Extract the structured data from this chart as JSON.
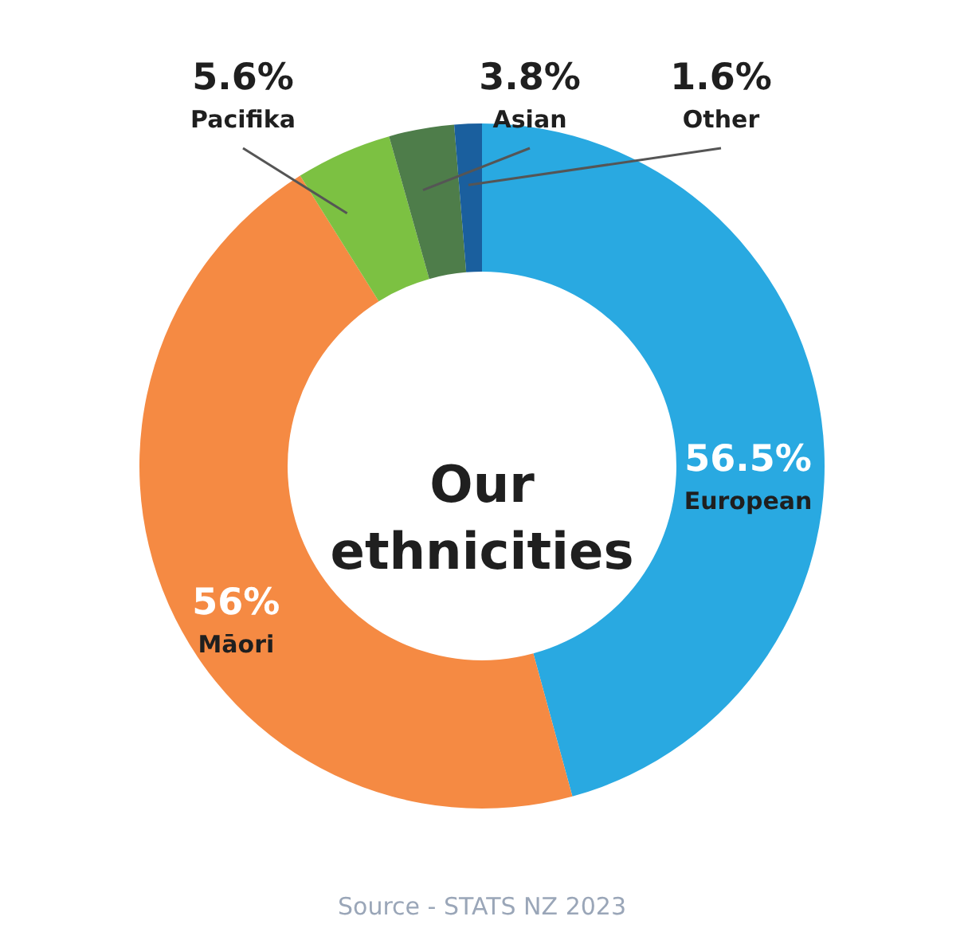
{
  "chart_data": {
    "type": "donut",
    "title": "Our ethnicities",
    "categories": [
      "European",
      "Māori",
      "Pacifika",
      "Asian",
      "Other"
    ],
    "values": [
      56.5,
      56,
      5.6,
      3.8,
      1.6
    ],
    "value_labels": [
      "56.5%",
      "56%",
      "5.6%",
      "3.8%",
      "1.6%"
    ],
    "colors": [
      "#29a9e1",
      "#f58a43",
      "#7cc142",
      "#4e7d4a",
      "#1a5f9e"
    ],
    "annotations": [
      "Source - STATS NZ 2023"
    ]
  }
}
